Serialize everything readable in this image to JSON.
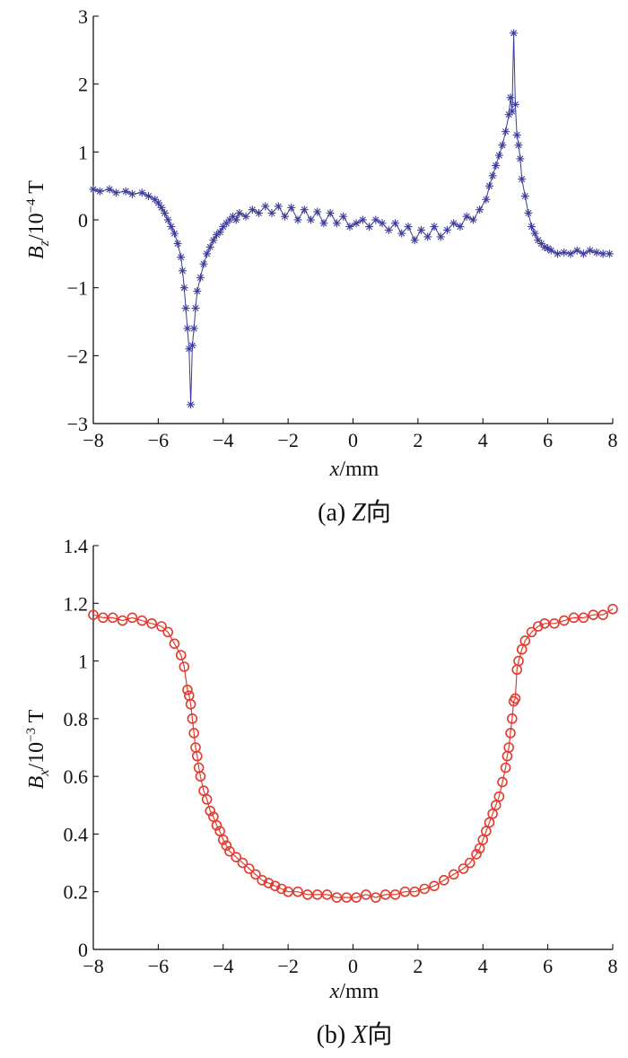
{
  "chart_data": [
    {
      "type": "line",
      "xlabel": "x/mm",
      "ylabel": "B_z/10^-4 T",
      "caption": "(a) Z向",
      "xlim": [
        -8,
        8
      ],
      "ylim": [
        -3,
        3
      ],
      "xticks": [
        -8,
        -6,
        -4,
        -2,
        0,
        2,
        4,
        6,
        8
      ],
      "yticks": [
        -3,
        -2,
        -1,
        0,
        1,
        2,
        3
      ],
      "color": "#3d3d99",
      "marker": "asterisk",
      "series": [
        {
          "x": [
            -8.0,
            -7.8,
            -7.5,
            -7.3,
            -7.0,
            -6.8,
            -6.5,
            -6.3,
            -6.1,
            -6.0,
            -5.9,
            -5.8,
            -5.7,
            -5.6,
            -5.5,
            -5.4,
            -5.3,
            -5.25,
            -5.2,
            -5.15,
            -5.1,
            -5.05,
            -5.0,
            -4.95,
            -4.9,
            -4.85,
            -4.8,
            -4.7,
            -4.6,
            -4.5,
            -4.4,
            -4.3,
            -4.2,
            -4.1,
            -4.0,
            -3.9,
            -3.8,
            -3.7,
            -3.6,
            -3.5,
            -3.3,
            -3.1,
            -2.9,
            -2.7,
            -2.5,
            -2.3,
            -2.1,
            -1.9,
            -1.7,
            -1.5,
            -1.3,
            -1.1,
            -0.9,
            -0.7,
            -0.5,
            -0.3,
            -0.1,
            0.1,
            0.3,
            0.5,
            0.7,
            0.9,
            1.1,
            1.3,
            1.5,
            1.7,
            1.9,
            2.1,
            2.3,
            2.5,
            2.7,
            2.9,
            3.1,
            3.3,
            3.5,
            3.7,
            3.9,
            4.1,
            4.2,
            4.3,
            4.4,
            4.5,
            4.6,
            4.7,
            4.8,
            4.85,
            4.9,
            4.95,
            5.0,
            5.05,
            5.1,
            5.15,
            5.2,
            5.3,
            5.4,
            5.5,
            5.6,
            5.7,
            5.8,
            5.9,
            6.0,
            6.1,
            6.3,
            6.5,
            6.7,
            6.9,
            7.1,
            7.3,
            7.5,
            7.7,
            7.9
          ],
          "y": [
            0.45,
            0.42,
            0.45,
            0.4,
            0.42,
            0.38,
            0.4,
            0.35,
            0.3,
            0.25,
            0.18,
            0.1,
            0.0,
            -0.1,
            -0.2,
            -0.35,
            -0.55,
            -0.75,
            -1.0,
            -1.3,
            -1.6,
            -1.9,
            -2.72,
            -1.85,
            -1.6,
            -1.3,
            -1.05,
            -0.85,
            -0.65,
            -0.5,
            -0.4,
            -0.3,
            -0.22,
            -0.18,
            -0.1,
            -0.05,
            0.0,
            0.05,
            0.0,
            0.1,
            0.05,
            0.15,
            0.1,
            0.2,
            0.1,
            0.2,
            0.05,
            0.18,
            0.0,
            0.15,
            0.0,
            0.12,
            -0.05,
            0.1,
            -0.05,
            0.05,
            -0.1,
            -0.05,
            0.0,
            -0.1,
            0.0,
            -0.05,
            -0.15,
            -0.05,
            -0.2,
            -0.1,
            -0.3,
            -0.15,
            -0.25,
            -0.1,
            -0.25,
            -0.15,
            -0.05,
            -0.1,
            0.05,
            0.0,
            0.15,
            0.3,
            0.5,
            0.65,
            0.8,
            0.95,
            1.1,
            1.3,
            1.55,
            1.8,
            1.6,
            2.75,
            1.7,
            1.25,
            1.1,
            0.9,
            0.6,
            0.35,
            0.1,
            -0.1,
            -0.2,
            -0.3,
            -0.35,
            -0.4,
            -0.42,
            -0.45,
            -0.5,
            -0.48,
            -0.5,
            -0.45,
            -0.5,
            -0.45,
            -0.48,
            -0.5,
            -0.5
          ]
        }
      ]
    },
    {
      "type": "line",
      "xlabel": "x/mm",
      "ylabel": "B_x/10^-3 T",
      "caption": "(b) X向",
      "xlim": [
        -8,
        8
      ],
      "ylim": [
        0,
        1.4
      ],
      "xticks": [
        -8,
        -6,
        -4,
        -2,
        0,
        2,
        4,
        6,
        8
      ],
      "yticks": [
        0,
        0.2,
        0.4,
        0.6,
        0.8,
        1.0,
        1.2,
        1.4
      ],
      "color": "#e23a2e",
      "marker": "circle",
      "series": [
        {
          "x": [
            -8.0,
            -7.7,
            -7.4,
            -7.1,
            -6.8,
            -6.5,
            -6.2,
            -5.9,
            -5.7,
            -5.5,
            -5.3,
            -5.2,
            -5.1,
            -5.05,
            -5.0,
            -4.95,
            -4.9,
            -4.85,
            -4.8,
            -4.75,
            -4.7,
            -4.6,
            -4.5,
            -4.4,
            -4.3,
            -4.2,
            -4.1,
            -4.0,
            -3.9,
            -3.8,
            -3.6,
            -3.4,
            -3.2,
            -3.0,
            -2.8,
            -2.6,
            -2.4,
            -2.2,
            -2.0,
            -1.7,
            -1.4,
            -1.1,
            -0.8,
            -0.5,
            -0.2,
            0.1,
            0.4,
            0.7,
            1.0,
            1.3,
            1.6,
            1.9,
            2.2,
            2.5,
            2.8,
            3.1,
            3.4,
            3.6,
            3.8,
            3.9,
            4.0,
            4.1,
            4.2,
            4.3,
            4.4,
            4.5,
            4.6,
            4.7,
            4.75,
            4.8,
            4.85,
            4.9,
            4.95,
            5.0,
            5.05,
            5.1,
            5.2,
            5.3,
            5.5,
            5.7,
            5.9,
            6.2,
            6.5,
            6.8,
            7.1,
            7.4,
            7.7,
            8.0
          ],
          "y": [
            1.16,
            1.15,
            1.15,
            1.14,
            1.15,
            1.14,
            1.13,
            1.12,
            1.1,
            1.06,
            1.02,
            0.98,
            0.9,
            0.88,
            0.85,
            0.8,
            0.75,
            0.7,
            0.67,
            0.63,
            0.6,
            0.55,
            0.52,
            0.48,
            0.46,
            0.43,
            0.41,
            0.38,
            0.36,
            0.34,
            0.32,
            0.3,
            0.28,
            0.26,
            0.24,
            0.23,
            0.22,
            0.21,
            0.2,
            0.2,
            0.19,
            0.19,
            0.19,
            0.18,
            0.18,
            0.18,
            0.19,
            0.18,
            0.19,
            0.19,
            0.2,
            0.2,
            0.21,
            0.22,
            0.24,
            0.26,
            0.28,
            0.3,
            0.33,
            0.35,
            0.38,
            0.41,
            0.44,
            0.47,
            0.5,
            0.53,
            0.58,
            0.63,
            0.67,
            0.7,
            0.75,
            0.8,
            0.86,
            0.87,
            0.97,
            1.0,
            1.04,
            1.07,
            1.1,
            1.12,
            1.13,
            1.13,
            1.14,
            1.15,
            1.15,
            1.16,
            1.16,
            1.18
          ]
        }
      ]
    }
  ]
}
